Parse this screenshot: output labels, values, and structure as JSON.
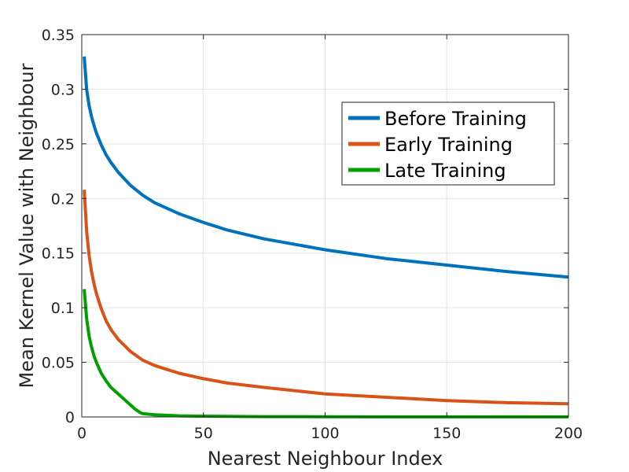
{
  "chart_data": {
    "type": "line",
    "title": "",
    "xlabel": "Nearest Neighbour Index",
    "ylabel": "Mean Kernel Value with Neighbour",
    "xlim": [
      0,
      200
    ],
    "ylim": [
      0,
      0.35
    ],
    "x_ticks": [
      0,
      50,
      100,
      150,
      200
    ],
    "x_tick_labels": [
      "0",
      "50",
      "100",
      "150",
      "200"
    ],
    "y_ticks": [
      0,
      0.05,
      0.1,
      0.15,
      0.2,
      0.25,
      0.3,
      0.35
    ],
    "y_tick_labels": [
      "0",
      "0.05",
      "0.1",
      "0.15",
      "0.2",
      "0.25",
      "0.3",
      "0.35"
    ],
    "grid": true,
    "legend_position": "top-right",
    "series": [
      {
        "name": "Before Training",
        "color": "#0072BD",
        "x": [
          1,
          2,
          3,
          4,
          5,
          6,
          8,
          10,
          12,
          15,
          20,
          25,
          30,
          40,
          50,
          60,
          75,
          100,
          125,
          150,
          175,
          200
        ],
        "y": [
          0.33,
          0.3,
          0.285,
          0.275,
          0.267,
          0.26,
          0.249,
          0.24,
          0.233,
          0.224,
          0.212,
          0.203,
          0.196,
          0.186,
          0.178,
          0.171,
          0.163,
          0.153,
          0.145,
          0.139,
          0.133,
          0.128
        ]
      },
      {
        "name": "Early Training",
        "color": "#D95319",
        "x": [
          1,
          2,
          3,
          4,
          5,
          6,
          8,
          10,
          12,
          15,
          20,
          25,
          30,
          40,
          50,
          60,
          75,
          100,
          125,
          150,
          175,
          200
        ],
        "y": [
          0.208,
          0.17,
          0.148,
          0.133,
          0.122,
          0.113,
          0.099,
          0.088,
          0.08,
          0.071,
          0.06,
          0.052,
          0.047,
          0.04,
          0.035,
          0.031,
          0.027,
          0.021,
          0.018,
          0.015,
          0.013,
          0.012
        ]
      },
      {
        "name": "Late Training",
        "color": "#00A000",
        "x": [
          1,
          2,
          3,
          4,
          5,
          6,
          8,
          10,
          12,
          15,
          18,
          20,
          22,
          24,
          25,
          30,
          40,
          50,
          75,
          100,
          150,
          200
        ],
        "y": [
          0.117,
          0.09,
          0.074,
          0.064,
          0.056,
          0.05,
          0.04,
          0.033,
          0.027,
          0.021,
          0.015,
          0.011,
          0.007,
          0.004,
          0.003,
          0.002,
          0.001,
          0.0007,
          0.0003,
          0.0002,
          0.0001,
          0.0001
        ]
      }
    ]
  }
}
